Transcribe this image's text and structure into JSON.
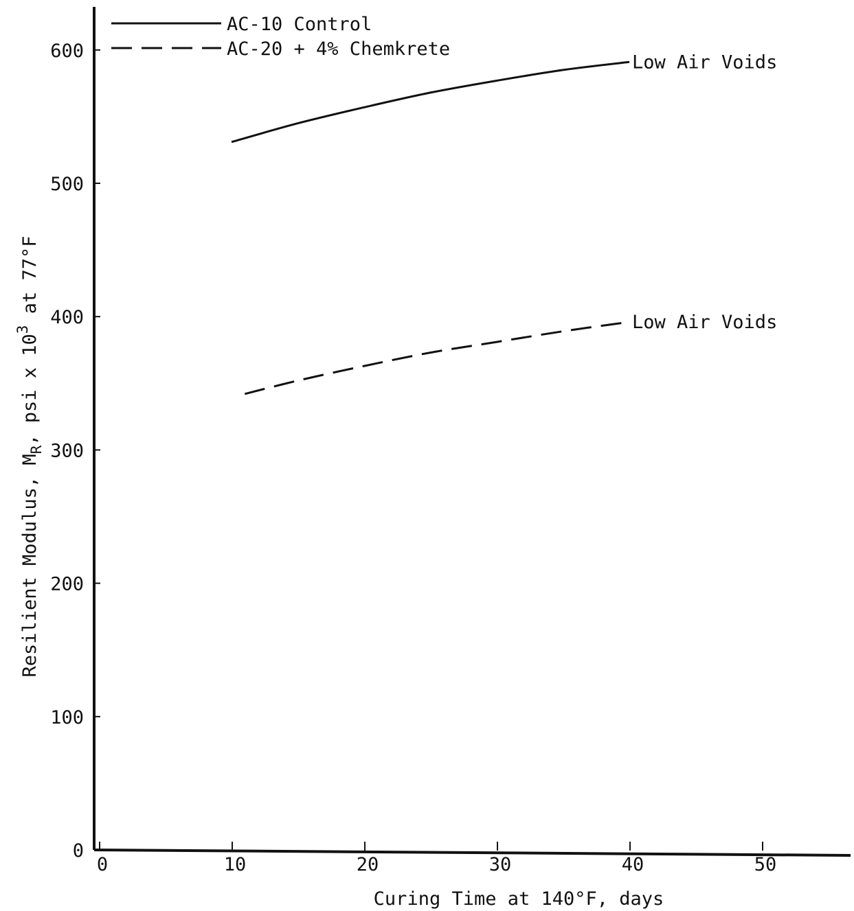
{
  "chart_data": {
    "type": "line",
    "title": "",
    "xlabel": "Curing Time at 140°F, days",
    "ylabel": {
      "main": "Resilient Modulus, M",
      "subscript": "R",
      "after_subscript": ", psi x 10",
      "superscript": "3",
      "tail": " at 77°F"
    },
    "xlim": [
      0,
      55
    ],
    "ylim": [
      0,
      640
    ],
    "xticks": [
      0,
      10,
      20,
      30,
      40,
      50
    ],
    "yticks": [
      0,
      100,
      200,
      300,
      400,
      500,
      600
    ],
    "grid": false,
    "legend": {
      "placement": "top-left"
    },
    "series": [
      {
        "name": "AC-10 Control",
        "style": "solid",
        "color": "#111111",
        "annotation": "Low Air Voids",
        "x": [
          10,
          15,
          20,
          25,
          30,
          35,
          40
        ],
        "y": [
          531,
          545,
          557,
          568,
          577,
          585,
          591
        ]
      },
      {
        "name": "AC-20 + 4% Chemkrete",
        "style": "dashed",
        "color": "#111111",
        "annotation": "Low Air Voids",
        "x": [
          11,
          15,
          20,
          25,
          30,
          35,
          40
        ],
        "y": [
          342,
          352,
          363,
          373,
          381,
          389,
          396
        ]
      }
    ]
  }
}
